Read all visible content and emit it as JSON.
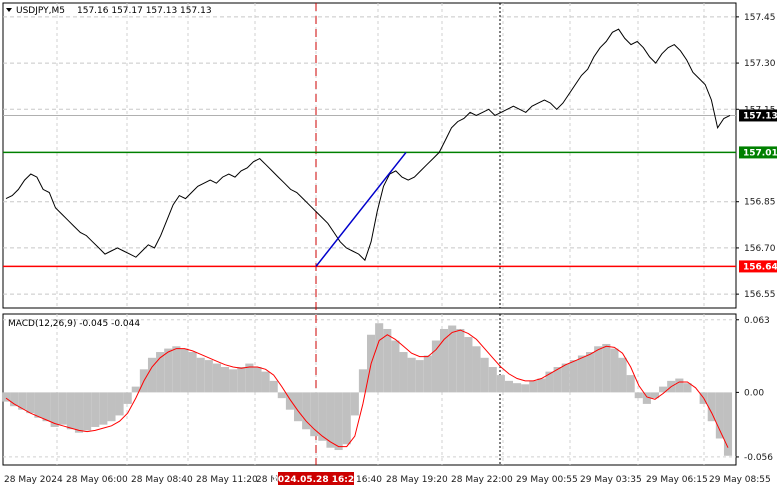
{
  "symbol_title": "USDJPY,M5",
  "ohlc": "157.16 157.17 157.13 157.13",
  "macd_title": "MACD(12,26,9) -0.045 -0.044",
  "colors": {
    "support": "#ff0000",
    "resistance": "#008000",
    "trend": "#0000cc",
    "signal": "#ff0000",
    "histogram": "#c0c0c0",
    "marker": "#cc0000",
    "price_badge": "#000000"
  },
  "chart_data": {
    "type": "line",
    "series": [
      {
        "name": "USDJPY,M5",
        "values": [
          156.86,
          156.87,
          156.89,
          156.92,
          156.94,
          156.93,
          156.89,
          156.88,
          156.83,
          156.81,
          156.79,
          156.77,
          156.75,
          156.74,
          156.72,
          156.7,
          156.68,
          156.69,
          156.7,
          156.69,
          156.68,
          156.67,
          156.69,
          156.71,
          156.7,
          156.74,
          156.79,
          156.84,
          156.87,
          156.86,
          156.88,
          156.9,
          156.91,
          156.92,
          156.91,
          156.93,
          156.94,
          156.93,
          156.95,
          156.96,
          156.98,
          156.99,
          156.97,
          156.95,
          156.93,
          156.91,
          156.89,
          156.88,
          156.86,
          156.84,
          156.82,
          156.8,
          156.78,
          156.75,
          156.72,
          156.7,
          156.69,
          156.68,
          156.66,
          156.72,
          156.82,
          156.9,
          156.94,
          156.95,
          156.93,
          156.92,
          156.93,
          156.95,
          156.97,
          156.99,
          157.01,
          157.05,
          157.09,
          157.11,
          157.12,
          157.14,
          157.13,
          157.14,
          157.15,
          157.13,
          157.14,
          157.15,
          157.16,
          157.15,
          157.14,
          157.16,
          157.17,
          157.18,
          157.17,
          157.15,
          157.17,
          157.2,
          157.23,
          157.26,
          157.28,
          157.32,
          157.35,
          157.37,
          157.4,
          157.41,
          157.38,
          157.36,
          157.37,
          157.35,
          157.32,
          157.3,
          157.33,
          157.35,
          157.36,
          157.34,
          157.31,
          157.27,
          157.25,
          157.23,
          157.18,
          157.09,
          157.12,
          157.13
        ],
        "x_positions_note": ""
      }
    ],
    "x_tick_labels": [
      "28 May 2024",
      "28 May 06:00",
      "28 May 08:40",
      "28 May 11:20",
      "28 M",
      "2024.05.28 16:20",
      "16:40",
      "28 May 19:20",
      "28 May 22:00",
      "29 May 00:55",
      "29 May 03:35",
      "29 May 06:15",
      "29 May 08:55"
    ],
    "y_tick_labels": [
      "157.45",
      "157.30",
      "157.15",
      "157.13",
      "157.01",
      "156.85",
      "156.70",
      "156.64",
      "156.55"
    ],
    "ylim": [
      156.505,
      157.495
    ],
    "levels": {
      "resistance": 157.01,
      "support": 156.64,
      "current": 157.13
    },
    "trend_line": {
      "from": 156.64,
      "to": 157.01
    },
    "macd": {
      "ylim": [
        -0.063,
        0.068
      ],
      "y_tick_labels": [
        "0.063",
        "0.00",
        "-0.056"
      ],
      "histogram": [
        -0.008,
        -0.012,
        -0.015,
        -0.018,
        -0.022,
        -0.025,
        -0.03,
        -0.028,
        -0.032,
        -0.035,
        -0.033,
        -0.03,
        -0.028,
        -0.025,
        -0.02,
        -0.01,
        0.005,
        0.02,
        0.03,
        0.035,
        0.038,
        0.04,
        0.038,
        0.035,
        0.03,
        0.028,
        0.025,
        0.022,
        0.02,
        0.022,
        0.025,
        0.022,
        0.018,
        0.01,
        -0.005,
        -0.015,
        -0.025,
        -0.032,
        -0.038,
        -0.042,
        -0.048,
        -0.05,
        -0.045,
        -0.02,
        0.02,
        0.05,
        0.06,
        0.055,
        0.045,
        0.035,
        0.03,
        0.028,
        0.032,
        0.045,
        0.055,
        0.058,
        0.055,
        0.048,
        0.04,
        0.03,
        0.022,
        0.015,
        0.01,
        0.008,
        0.007,
        0.01,
        0.012,
        0.018,
        0.022,
        0.025,
        0.028,
        0.032,
        0.035,
        0.04,
        0.042,
        0.038,
        0.03,
        0.015,
        -0.005,
        -0.01,
        -0.005,
        0.005,
        0.01,
        0.012,
        0.008,
        0.0,
        -0.01,
        -0.025,
        -0.04,
        -0.055
      ],
      "signal": [
        -0.005,
        -0.01,
        -0.014,
        -0.018,
        -0.021,
        -0.024,
        -0.027,
        -0.029,
        -0.031,
        -0.033,
        -0.034,
        -0.033,
        -0.031,
        -0.029,
        -0.025,
        -0.018,
        -0.005,
        0.01,
        0.022,
        0.03,
        0.035,
        0.038,
        0.038,
        0.036,
        0.033,
        0.03,
        0.027,
        0.024,
        0.022,
        0.021,
        0.022,
        0.022,
        0.02,
        0.015,
        0.005,
        -0.006,
        -0.016,
        -0.025,
        -0.032,
        -0.038,
        -0.043,
        -0.047,
        -0.047,
        -0.038,
        -0.01,
        0.025,
        0.045,
        0.05,
        0.046,
        0.04,
        0.034,
        0.031,
        0.031,
        0.037,
        0.046,
        0.052,
        0.054,
        0.051,
        0.046,
        0.038,
        0.03,
        0.022,
        0.016,
        0.012,
        0.01,
        0.01,
        0.012,
        0.016,
        0.02,
        0.024,
        0.027,
        0.03,
        0.033,
        0.037,
        0.04,
        0.039,
        0.034,
        0.022,
        0.006,
        -0.004,
        -0.006,
        -0.001,
        0.005,
        0.009,
        0.009,
        0.004,
        -0.005,
        -0.018,
        -0.033,
        -0.048
      ]
    }
  }
}
